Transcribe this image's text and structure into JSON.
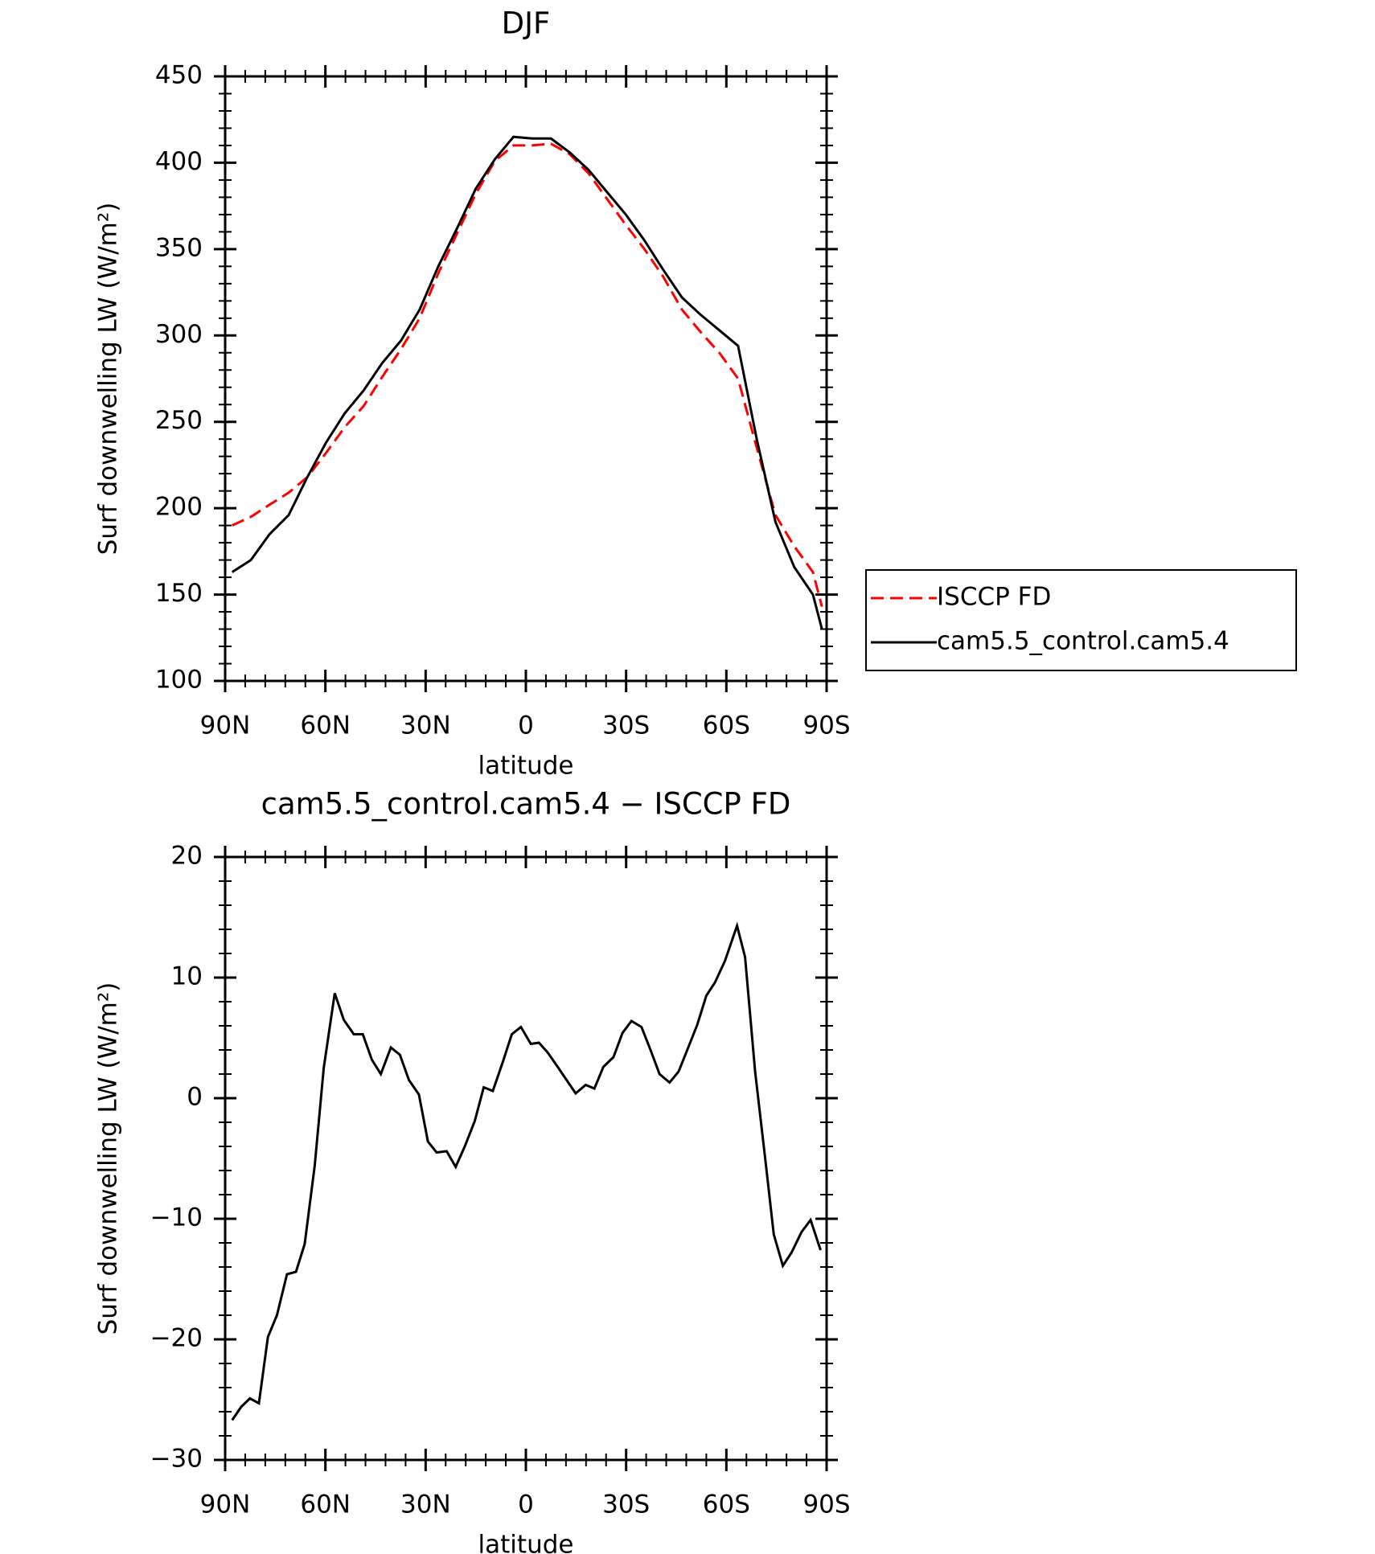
{
  "chart_data": [
    {
      "type": "line",
      "title": "DJF",
      "xlabel": "latitude",
      "ylabel": "Surf downwelling LW (W/m²)",
      "x": [
        87.9,
        82.3,
        76.7,
        71.0,
        65.4,
        59.8,
        54.2,
        48.6,
        43.0,
        37.4,
        31.8,
        26.2,
        20.6,
        15.0,
        9.3,
        3.7,
        -1.9,
        -7.5,
        -13.1,
        -18.7,
        -24.3,
        -29.9,
        -35.5,
        -41.1,
        -46.7,
        -52.3,
        -57.9,
        -63.5,
        -69.1,
        -74.7,
        -80.3,
        -85.9,
        -88.6
      ],
      "xlim": [
        90,
        -90
      ],
      "xticks": [
        {
          "value": 90,
          "label": "90N"
        },
        {
          "value": 60,
          "label": "60N"
        },
        {
          "value": 30,
          "label": "30N"
        },
        0,
        {
          "value": -30,
          "label": "30S"
        },
        {
          "value": -60,
          "label": "60S"
        },
        {
          "value": -90,
          "label": "90S"
        }
      ],
      "ylim": [
        100,
        450
      ],
      "yticks": [
        100,
        150,
        200,
        250,
        300,
        350,
        400,
        450
      ],
      "legend": "right",
      "series": [
        {
          "name": "ISCCP FD",
          "color": "#ff0000",
          "style": "dashed",
          "values": [
            190,
            195,
            202,
            209,
            218,
            232,
            247,
            259,
            276,
            292,
            310,
            336,
            359,
            382,
            401,
            410,
            410,
            411,
            405,
            394,
            379,
            364,
            350,
            334,
            315,
            302,
            290,
            275,
            235,
            196,
            178,
            163,
            143
          ]
        },
        {
          "name": "cam5.5_control.cam5.4",
          "color": "#000000",
          "style": "solid",
          "values": [
            163,
            170,
            185,
            196,
            218,
            238,
            255,
            268,
            284,
            297,
            315,
            340,
            362,
            385,
            402,
            415,
            414,
            414,
            406,
            396,
            383,
            370,
            355,
            338,
            322,
            312,
            303,
            294,
            240,
            192,
            166,
            150,
            130
          ]
        }
      ]
    },
    {
      "type": "line",
      "title": "cam5.5_control.cam5.4 − ISCCP FD",
      "xlabel": "latitude",
      "ylabel": "Surf downwelling LW (W/m²)",
      "x": [
        87.9,
        85.2,
        82.6,
        79.9,
        77.2,
        74.5,
        71.5,
        68.8,
        66.2,
        63.2,
        60.5,
        57.2,
        54.5,
        51.5,
        48.8,
        46.1,
        43.4,
        40.4,
        37.7,
        35.0,
        32.0,
        29.3,
        26.7,
        23.7,
        21.0,
        18.3,
        15.3,
        12.6,
        9.9,
        6.9,
        4.2,
        1.5,
        -1.5,
        -3.9,
        -6.5,
        -9.5,
        -12.2,
        -14.9,
        -17.9,
        -20.5,
        -23.2,
        -26.2,
        -28.9,
        -31.6,
        -34.6,
        -37.3,
        -40.0,
        -43.0,
        -45.7,
        -48.3,
        -51.3,
        -54.0,
        -56.6,
        -59.6,
        -63.2,
        -65.6,
        -68.6,
        -71.5,
        -74.2,
        -76.9,
        -79.5,
        -82.5,
        -85.2,
        -88.2
      ],
      "xlim": [
        90,
        -90
      ],
      "xticks": [
        {
          "value": 90,
          "label": "90N"
        },
        {
          "value": 60,
          "label": "60N"
        },
        {
          "value": 30,
          "label": "30N"
        },
        0,
        {
          "value": -30,
          "label": "30S"
        },
        {
          "value": -60,
          "label": "60S"
        },
        {
          "value": -90,
          "label": "90S"
        }
      ],
      "ylim": [
        -30,
        20
      ],
      "yticks": [
        {
          "value": -30,
          "label": "−30"
        },
        {
          "value": -20,
          "label": "−20"
        },
        {
          "value": -10,
          "label": "−10"
        },
        0,
        10,
        20
      ],
      "series": [
        {
          "color": "#000000",
          "style": "solid",
          "values": [
            -26.7,
            -25.6,
            -24.9,
            -25.3,
            -19.8,
            -18,
            -14.6,
            -14.4,
            -12.1,
            -5.6,
            2.5,
            8.7,
            6.5,
            5.3,
            5.3,
            3.2,
            2.0,
            4.2,
            3.6,
            1.5,
            0.3,
            -3.6,
            -4.5,
            -4.4,
            -5.7,
            -4.0,
            -1.9,
            0.9,
            0.6,
            3.0,
            5.3,
            5.9,
            4.5,
            4.6,
            3.8,
            2.6,
            1.5,
            0.4,
            1.1,
            0.8,
            2.6,
            3.4,
            5.4,
            6.4,
            5.9,
            4.0,
            2.0,
            1.3,
            2.2,
            4.0,
            6.1,
            8.5,
            9.6,
            11.4,
            14.3,
            11.7,
            2.2,
            -4.7,
            -11.3,
            -13.9,
            -12.8,
            -11.1,
            -10.1,
            -12.6
          ]
        }
      ]
    }
  ]
}
